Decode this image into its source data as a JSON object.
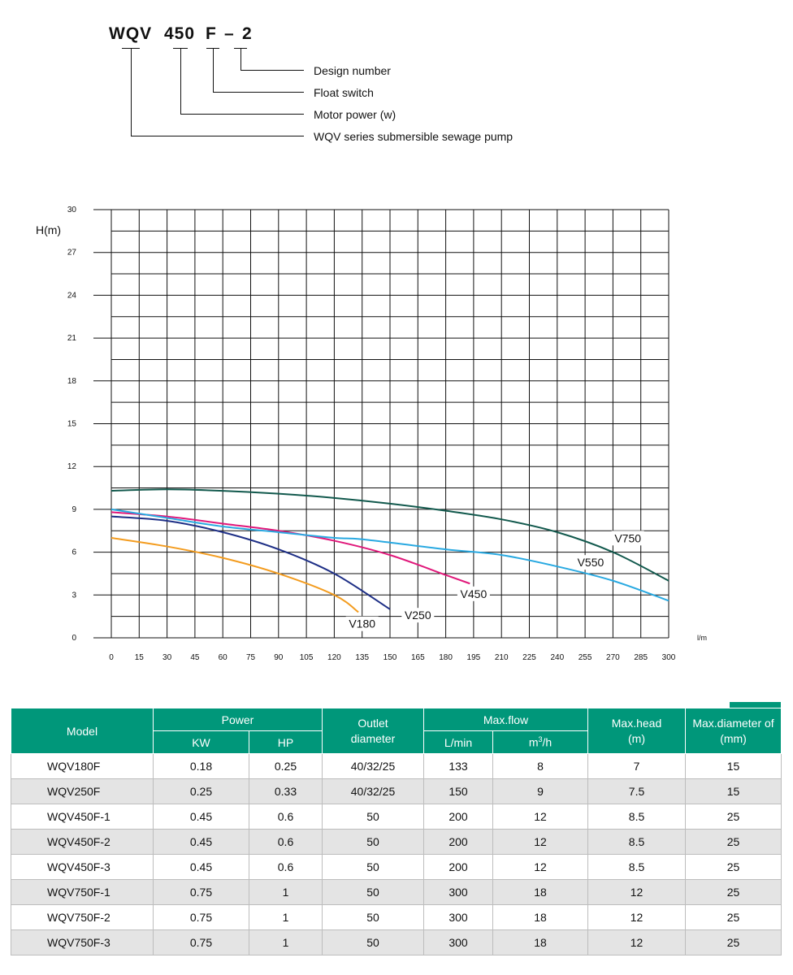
{
  "code": {
    "parts": [
      "WQV",
      "450",
      "F",
      "–",
      "2"
    ],
    "legend": [
      "Design number",
      "Float switch",
      "Motor power (w)",
      "WQV series submersible sewage pump"
    ]
  },
  "chart_data": {
    "type": "line",
    "ylabel": "H(m)",
    "xlabel": "l/m",
    "xlim": [
      0,
      300
    ],
    "ylim": [
      0,
      30
    ],
    "x_ticks": [
      "0",
      "15",
      "30",
      "45",
      "60",
      "75",
      "90",
      "105",
      "120",
      "135",
      "150",
      "165",
      "180",
      "195",
      "210",
      "225",
      "240",
      "255",
      "270",
      "285",
      "300"
    ],
    "y_ticks": [
      "0",
      "3",
      "6",
      "9",
      "12",
      "15",
      "18",
      "21",
      "24",
      "27",
      "30"
    ],
    "grid": true,
    "series": [
      {
        "name": "V180",
        "color": "#f39c1f",
        "points": [
          [
            0,
            7.0
          ],
          [
            30,
            6.4
          ],
          [
            60,
            5.6
          ],
          [
            90,
            4.5
          ],
          [
            120,
            3.0
          ],
          [
            133,
            1.8
          ]
        ]
      },
      {
        "name": "V250",
        "color": "#1e2f86",
        "points": [
          [
            0,
            8.5
          ],
          [
            30,
            8.2
          ],
          [
            60,
            7.4
          ],
          [
            90,
            6.2
          ],
          [
            120,
            4.5
          ],
          [
            150,
            2.0
          ]
        ]
      },
      {
        "name": "V450",
        "color": "#e0187a",
        "points": [
          [
            0,
            8.8
          ],
          [
            30,
            8.5
          ],
          [
            60,
            8.0
          ],
          [
            90,
            7.5
          ],
          [
            120,
            6.8
          ],
          [
            150,
            5.8
          ],
          [
            180,
            4.4
          ],
          [
            193,
            3.8
          ]
        ]
      },
      {
        "name": "V550",
        "color": "#29a9e1",
        "points": [
          [
            0,
            9.0
          ],
          [
            30,
            8.4
          ],
          [
            60,
            7.8
          ],
          [
            90,
            7.4
          ],
          [
            120,
            7.0
          ],
          [
            135,
            6.9
          ],
          [
            180,
            6.2
          ],
          [
            210,
            5.8
          ],
          [
            240,
            5.0
          ],
          [
            270,
            4.0
          ],
          [
            300,
            2.6
          ]
        ]
      },
      {
        "name": "V750",
        "color": "#12594d",
        "points": [
          [
            0,
            10.3
          ],
          [
            30,
            10.4
          ],
          [
            60,
            10.3
          ],
          [
            90,
            10.1
          ],
          [
            120,
            9.8
          ],
          [
            150,
            9.4
          ],
          [
            180,
            8.9
          ],
          [
            210,
            8.3
          ],
          [
            240,
            7.4
          ],
          [
            270,
            6.0
          ],
          [
            300,
            4.0
          ]
        ]
      }
    ],
    "curve_labels": [
      {
        "text": "V180",
        "x": 135,
        "y": 0.7
      },
      {
        "text": "V250",
        "x": 165,
        "y": 1.3
      },
      {
        "text": "V450",
        "x": 195,
        "y": 2.8
      },
      {
        "text": "V550",
        "x": 258,
        "y": 5.0
      },
      {
        "text": "V750",
        "x": 278,
        "y": 6.7
      }
    ]
  },
  "table": {
    "headers": {
      "model": "Model",
      "power": "Power",
      "kw": "KW",
      "hp": "HP",
      "outlet": "Outlet diameter",
      "maxflow": "Max.flow",
      "lmin": "L/min",
      "m3h_base": "m",
      "m3h_sup": "3",
      "m3h_tail": "/h",
      "maxhead": "Max.head (m)",
      "maxdia": "Max.diameter of (mm)"
    },
    "rows": [
      [
        "WQV180F",
        "0.18",
        "0.25",
        "40/32/25",
        "133",
        "8",
        "7",
        "15"
      ],
      [
        "WQV250F",
        "0.25",
        "0.33",
        "40/32/25",
        "150",
        "9",
        "7.5",
        "15"
      ],
      [
        "WQV450F-1",
        "0.45",
        "0.6",
        "50",
        "200",
        "12",
        "8.5",
        "25"
      ],
      [
        "WQV450F-2",
        "0.45",
        "0.6",
        "50",
        "200",
        "12",
        "8.5",
        "25"
      ],
      [
        "WQV450F-3",
        "0.45",
        "0.6",
        "50",
        "200",
        "12",
        "8.5",
        "25"
      ],
      [
        "WQV750F-1",
        "0.75",
        "1",
        "50",
        "300",
        "18",
        "12",
        "25"
      ],
      [
        "WQV750F-2",
        "0.75",
        "1",
        "50",
        "300",
        "18",
        "12",
        "25"
      ],
      [
        "WQV750F-3",
        "0.75",
        "1",
        "50",
        "300",
        "18",
        "12",
        "25"
      ]
    ]
  }
}
